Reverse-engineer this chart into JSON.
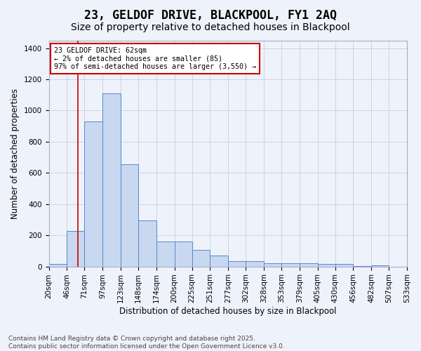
{
  "title": "23, GELDOF DRIVE, BLACKPOOL, FY1 2AQ",
  "subtitle": "Size of property relative to detached houses in Blackpool",
  "xlabel": "Distribution of detached houses by size in Blackpool",
  "ylabel": "Number of detached properties",
  "bar_color": "#c8d8f0",
  "bar_edge_color": "#5588cc",
  "background_color": "#eef2fa",
  "fig_facecolor": "#eef2fa",
  "annotation_text": "23 GELDOF DRIVE: 62sqm\n← 2% of detached houses are smaller (85)\n97% of semi-detached houses are larger (3,550) →",
  "annotation_box_color": "#ffffff",
  "annotation_box_edge": "#cc0000",
  "vline_x": 62,
  "vline_color": "#cc0000",
  "bin_edges": [
    20,
    46,
    71,
    97,
    123,
    148,
    174,
    200,
    225,
    251,
    277,
    302,
    328,
    353,
    379,
    405,
    430,
    456,
    482,
    507,
    533
  ],
  "bar_heights": [
    15,
    228,
    930,
    1110,
    655,
    295,
    160,
    160,
    105,
    68,
    35,
    35,
    22,
    22,
    22,
    18,
    18,
    2,
    8,
    0
  ],
  "ylim": [
    0,
    1450
  ],
  "yticks": [
    0,
    200,
    400,
    600,
    800,
    1000,
    1200,
    1400
  ],
  "footer_text": "Contains HM Land Registry data © Crown copyright and database right 2025.\nContains public sector information licensed under the Open Government Licence v3.0.",
  "title_fontsize": 12,
  "subtitle_fontsize": 10,
  "axis_label_fontsize": 8.5,
  "tick_fontsize": 7.5,
  "footer_fontsize": 6.5
}
